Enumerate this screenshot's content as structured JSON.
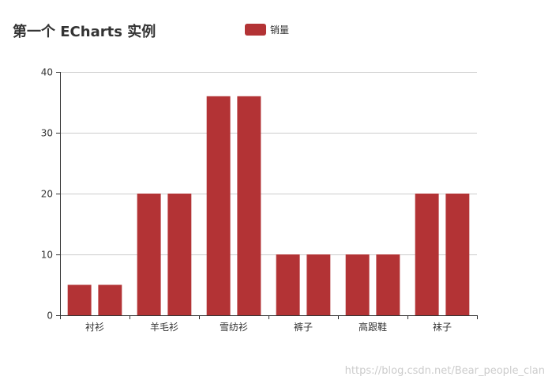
{
  "chart_data": {
    "type": "bar",
    "title": "第一个 ECharts 实例",
    "categories": [
      "衬衫",
      "羊毛衫",
      "雪纺衫",
      "裤子",
      "高跟鞋",
      "袜子"
    ],
    "series": [
      {
        "name": "销量",
        "values": [
          5,
          20,
          36,
          10,
          10,
          20
        ]
      },
      {
        "name": "",
        "values": [
          5,
          20,
          36,
          10,
          10,
          20
        ]
      }
    ],
    "ylim": [
      0,
      40
    ],
    "yticks": [
      0,
      10,
      20,
      30,
      40
    ],
    "grid": true,
    "legend_position": "top-center",
    "bar_color": "#b33335"
  },
  "colors": {
    "title": "#333333",
    "axis": "#333333",
    "grid": "#cccccc",
    "watermark": "#cccccc"
  },
  "watermark": "https://blog.csdn.net/Bear_people_clan"
}
